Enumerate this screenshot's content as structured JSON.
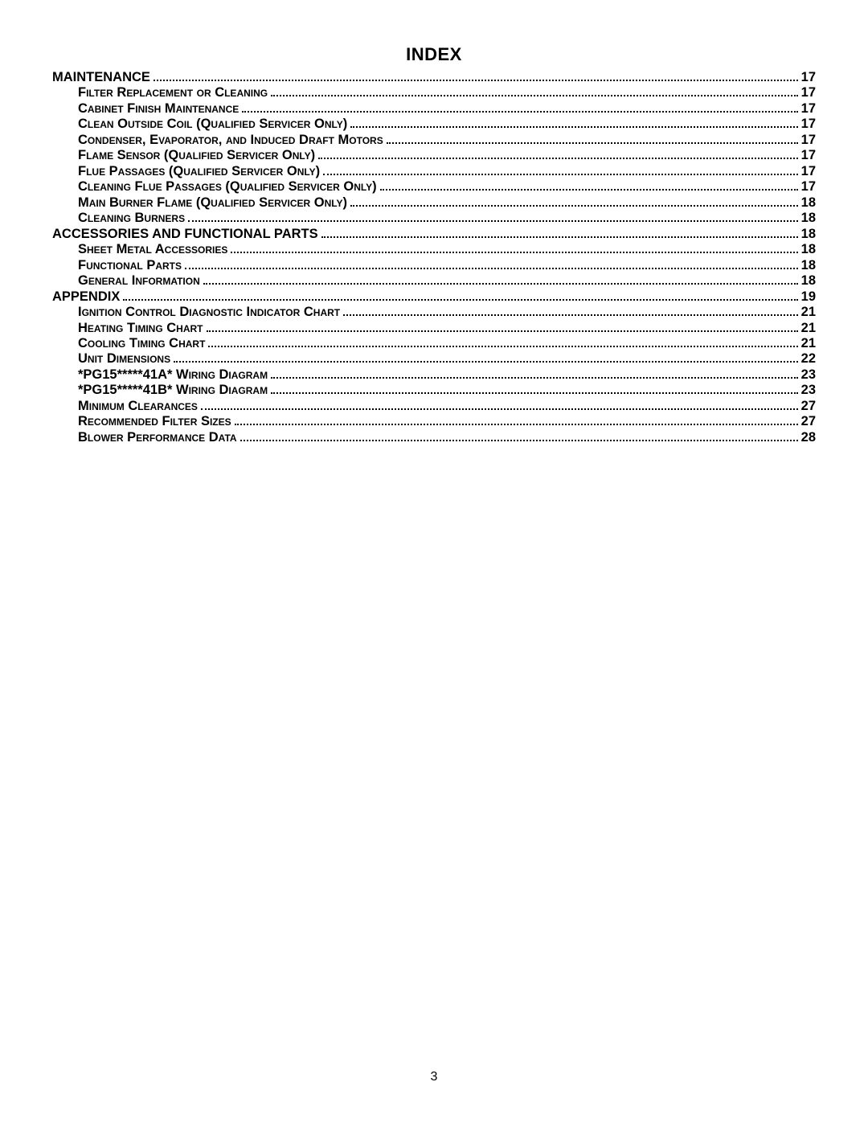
{
  "title": "INDEX",
  "page_number": "3",
  "font_family": "Arial, Helvetica, sans-serif",
  "text_color": "#000000",
  "background_color": "#ffffff",
  "entries": [
    {
      "label": "MAINTENANCE",
      "page": "17",
      "level": 0,
      "smallcaps": false
    },
    {
      "label": "Filter Replacement or Cleaning",
      "page": "17",
      "level": 1,
      "smallcaps": true
    },
    {
      "label": "Cabinet Finish Maintenance",
      "page": "17",
      "level": 1,
      "smallcaps": true
    },
    {
      "label": "Clean Outside Coil  (Qualified Servicer Only)",
      "page": "17",
      "level": 1,
      "smallcaps": true
    },
    {
      "label": "Condenser, Evaporator, and Induced Draft Motors",
      "page": "17",
      "level": 1,
      "smallcaps": true
    },
    {
      "label": "Flame Sensor (Qualified Servicer Only)",
      "page": "17",
      "level": 1,
      "smallcaps": true
    },
    {
      "label": "Flue Passages (Qualified Servicer Only)",
      "page": "17",
      "level": 1,
      "smallcaps": true
    },
    {
      "label": "Cleaning Flue Passages (Qualified Servicer Only)",
      "page": "17",
      "level": 1,
      "smallcaps": true
    },
    {
      "label": "Main Burner Flame (Qualified Servicer Only)",
      "page": "18",
      "level": 1,
      "smallcaps": true
    },
    {
      "label": "Cleaning Burners",
      "page": "18",
      "level": 1,
      "smallcaps": true
    },
    {
      "label": "ACCESSORIES AND FUNCTIONAL PARTS",
      "page": "18",
      "level": 0,
      "smallcaps": false
    },
    {
      "label": "Sheet Metal Accessories",
      "page": "18",
      "level": 1,
      "smallcaps": true
    },
    {
      "label": "Functional Parts",
      "page": "18",
      "level": 1,
      "smallcaps": true
    },
    {
      "label": "General Information",
      "page": "18",
      "level": 1,
      "smallcaps": true
    },
    {
      "label": "APPENDIX",
      "page": "19",
      "level": 0,
      "smallcaps": false
    },
    {
      "label": "Ignition Control Diagnostic Indicator Chart",
      "page": "21",
      "level": 1,
      "smallcaps": true
    },
    {
      "label": "Heating Timing Chart",
      "page": "21",
      "level": 1,
      "smallcaps": true
    },
    {
      "label": "Cooling Timing Chart",
      "page": "21",
      "level": 1,
      "smallcaps": true
    },
    {
      "label": "Unit Dimensions",
      "page": "22",
      "level": 1,
      "smallcaps": true
    },
    {
      "label": "*PG15*****41A* Wiring Diagram",
      "page": "23",
      "level": 1,
      "smallcaps": true
    },
    {
      "label": "*PG15*****41B* Wiring Diagram",
      "page": "23",
      "level": 1,
      "smallcaps": true
    },
    {
      "label": "Minimum Clearances",
      "page": "27",
      "level": 1,
      "smallcaps": true
    },
    {
      "label": "Recommended Filter Sizes",
      "page": "27",
      "level": 1,
      "smallcaps": true
    },
    {
      "label": "Blower Performance Data",
      "page": "28",
      "level": 1,
      "smallcaps": true
    }
  ]
}
